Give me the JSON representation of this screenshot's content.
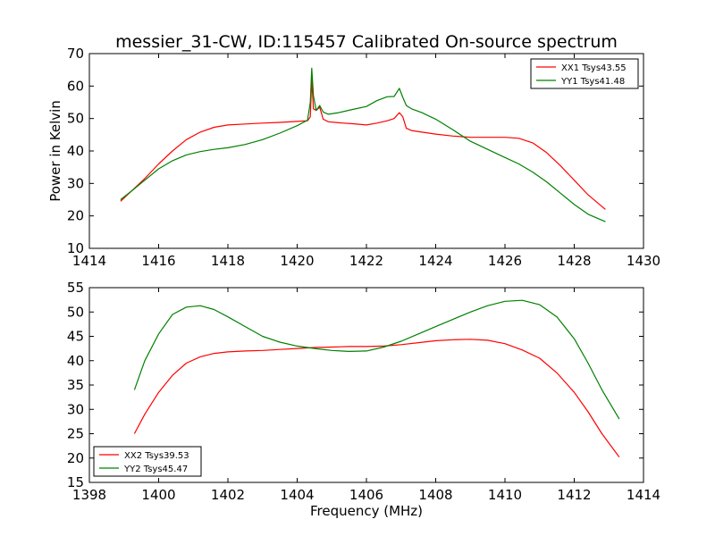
{
  "figure": {
    "title": "messier_31-CW, ID:115457 Calibrated On-source spectrum"
  },
  "colors": {
    "xx": "#ff0000",
    "yy": "#008000"
  },
  "chart_data": [
    {
      "type": "line",
      "xlabel": "",
      "ylabel": "Power in Kelvin",
      "xlim": [
        1414,
        1430
      ],
      "ylim": [
        10,
        70
      ],
      "xticks": [
        "1414",
        "1416",
        "1418",
        "1420",
        "1422",
        "1424",
        "1426",
        "1428",
        "1430"
      ],
      "yticks": [
        "10",
        "20",
        "30",
        "40",
        "50",
        "60",
        "70"
      ],
      "grid": false,
      "legend_position": "top-right",
      "series": [
        {
          "name": "XX1 Tsys43.55",
          "color": "#ff0000",
          "x": [
            1414.9,
            1415.2,
            1415.6,
            1416.0,
            1416.4,
            1416.8,
            1417.2,
            1417.6,
            1418.0,
            1418.5,
            1419.0,
            1419.5,
            1420.0,
            1420.3,
            1420.38,
            1420.42,
            1420.47,
            1420.55,
            1420.65,
            1420.75,
            1420.9,
            1421.2,
            1421.6,
            1422.0,
            1422.3,
            1422.6,
            1422.8,
            1422.95,
            1423.05,
            1423.15,
            1423.3,
            1423.6,
            1424.0,
            1424.5,
            1425.0,
            1425.5,
            1426.0,
            1426.4,
            1426.8,
            1427.2,
            1427.6,
            1428.0,
            1428.4,
            1428.9
          ],
          "y": [
            24.5,
            27.5,
            31.5,
            36.0,
            40.0,
            43.5,
            45.8,
            47.3,
            48.0,
            48.3,
            48.6,
            48.8,
            49.1,
            49.3,
            50.5,
            62.0,
            53.0,
            52.5,
            53.5,
            49.8,
            49.0,
            48.7,
            48.4,
            48.0,
            48.6,
            49.3,
            50.0,
            51.8,
            50.5,
            47.0,
            46.3,
            45.8,
            45.2,
            44.6,
            44.2,
            44.2,
            44.2,
            43.9,
            42.5,
            39.5,
            35.5,
            31.0,
            26.5,
            22.0
          ]
        },
        {
          "name": "YY1 Tsys41.48",
          "color": "#008000",
          "x": [
            1414.9,
            1415.2,
            1415.6,
            1416.0,
            1416.4,
            1416.8,
            1417.2,
            1417.6,
            1418.0,
            1418.5,
            1419.0,
            1419.5,
            1420.0,
            1420.3,
            1420.38,
            1420.42,
            1420.47,
            1420.55,
            1420.65,
            1420.75,
            1420.9,
            1421.2,
            1421.6,
            1422.0,
            1422.3,
            1422.6,
            1422.8,
            1422.95,
            1423.05,
            1423.15,
            1423.3,
            1423.6,
            1424.0,
            1424.5,
            1425.0,
            1425.5,
            1426.0,
            1426.4,
            1426.8,
            1427.2,
            1427.6,
            1428.0,
            1428.4,
            1428.9
          ],
          "y": [
            25.0,
            27.5,
            31.0,
            34.5,
            37.0,
            38.8,
            39.8,
            40.5,
            41.0,
            42.0,
            43.5,
            45.5,
            47.8,
            49.5,
            55.0,
            65.5,
            57.0,
            52.5,
            54.0,
            52.0,
            51.3,
            51.8,
            52.8,
            53.7,
            55.5,
            56.7,
            56.8,
            59.3,
            56.5,
            54.0,
            53.0,
            51.8,
            49.8,
            46.5,
            43.0,
            40.5,
            38.0,
            36.0,
            33.5,
            30.5,
            27.0,
            23.5,
            20.5,
            18.2
          ]
        }
      ]
    },
    {
      "type": "line",
      "xlabel": "Frequency (MHz)",
      "ylabel": "",
      "xlim": [
        1398,
        1414
      ],
      "ylim": [
        15,
        55
      ],
      "xticks": [
        "1398",
        "1400",
        "1402",
        "1404",
        "1406",
        "1408",
        "1410",
        "1412",
        "1414"
      ],
      "yticks": [
        "15",
        "20",
        "25",
        "30",
        "35",
        "40",
        "45",
        "50",
        "55"
      ],
      "grid": false,
      "legend_position": "bottom-left",
      "series": [
        {
          "name": "XX2 Tsys39.53",
          "color": "#ff0000",
          "x": [
            1399.3,
            1399.6,
            1400.0,
            1400.4,
            1400.8,
            1401.2,
            1401.6,
            1402.0,
            1402.5,
            1403.0,
            1403.5,
            1404.0,
            1404.5,
            1405.0,
            1405.5,
            1406.0,
            1406.5,
            1407.0,
            1407.5,
            1408.0,
            1408.5,
            1409.0,
            1409.5,
            1410.0,
            1410.5,
            1411.0,
            1411.5,
            1412.0,
            1412.4,
            1412.8,
            1413.3
          ],
          "y": [
            25.0,
            29.0,
            33.5,
            37.0,
            39.5,
            40.8,
            41.5,
            41.8,
            42.0,
            42.1,
            42.3,
            42.5,
            42.7,
            42.8,
            42.9,
            42.9,
            43.0,
            43.3,
            43.7,
            44.1,
            44.3,
            44.4,
            44.2,
            43.5,
            42.2,
            40.5,
            37.5,
            33.5,
            29.5,
            25.0,
            20.2
          ]
        },
        {
          "name": "YY2 Tsys45.47",
          "color": "#008000",
          "x": [
            1399.3,
            1399.6,
            1400.0,
            1400.4,
            1400.8,
            1401.2,
            1401.6,
            1402.0,
            1402.5,
            1403.0,
            1403.5,
            1404.0,
            1404.5,
            1405.0,
            1405.5,
            1406.0,
            1406.5,
            1407.0,
            1407.5,
            1408.0,
            1408.5,
            1409.0,
            1409.5,
            1410.0,
            1410.5,
            1411.0,
            1411.5,
            1412.0,
            1412.4,
            1412.8,
            1413.3
          ],
          "y": [
            34.0,
            40.0,
            45.5,
            49.5,
            51.0,
            51.3,
            50.5,
            49.0,
            47.0,
            45.0,
            43.8,
            43.0,
            42.5,
            42.1,
            41.9,
            42.0,
            42.8,
            44.0,
            45.5,
            47.0,
            48.5,
            50.0,
            51.3,
            52.2,
            52.4,
            51.5,
            49.0,
            44.5,
            39.5,
            34.0,
            28.0
          ]
        }
      ]
    }
  ]
}
